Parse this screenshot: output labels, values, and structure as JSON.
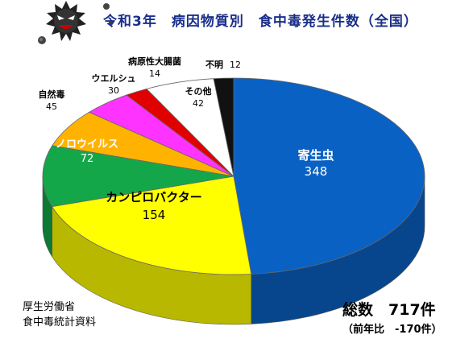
{
  "title": "令和3年　病因物質別　食中毒発生件数（全国）",
  "source": [
    "厚生労働省",
    "食中毒統計資料"
  ],
  "total_label": "総数　717件",
  "delta_label": "（前年比　-170件）",
  "chart_data": {
    "type": "pie",
    "title": "令和3年　病因物質別　食中毒発生件数（全国）",
    "total": 717,
    "slices": [
      {
        "label": "寄生虫",
        "value": 348,
        "color": "#0a61c4"
      },
      {
        "label": "カンピロバクター",
        "value": 154,
        "color": "#ffff00"
      },
      {
        "label": "ノロウイルス",
        "value": 72,
        "color": "#14a74a"
      },
      {
        "label": "自然毒",
        "value": 45,
        "color": "#ffb300"
      },
      {
        "label": "ウエルシュ",
        "value": 30,
        "color": "#ff33ff"
      },
      {
        "label": "病原性大腸菌",
        "value": 14,
        "color": "#e00000"
      },
      {
        "label": "その他",
        "value": 42,
        "color": "#ffffff"
      },
      {
        "label": "不明",
        "value": 12,
        "color": "#111111"
      }
    ]
  }
}
